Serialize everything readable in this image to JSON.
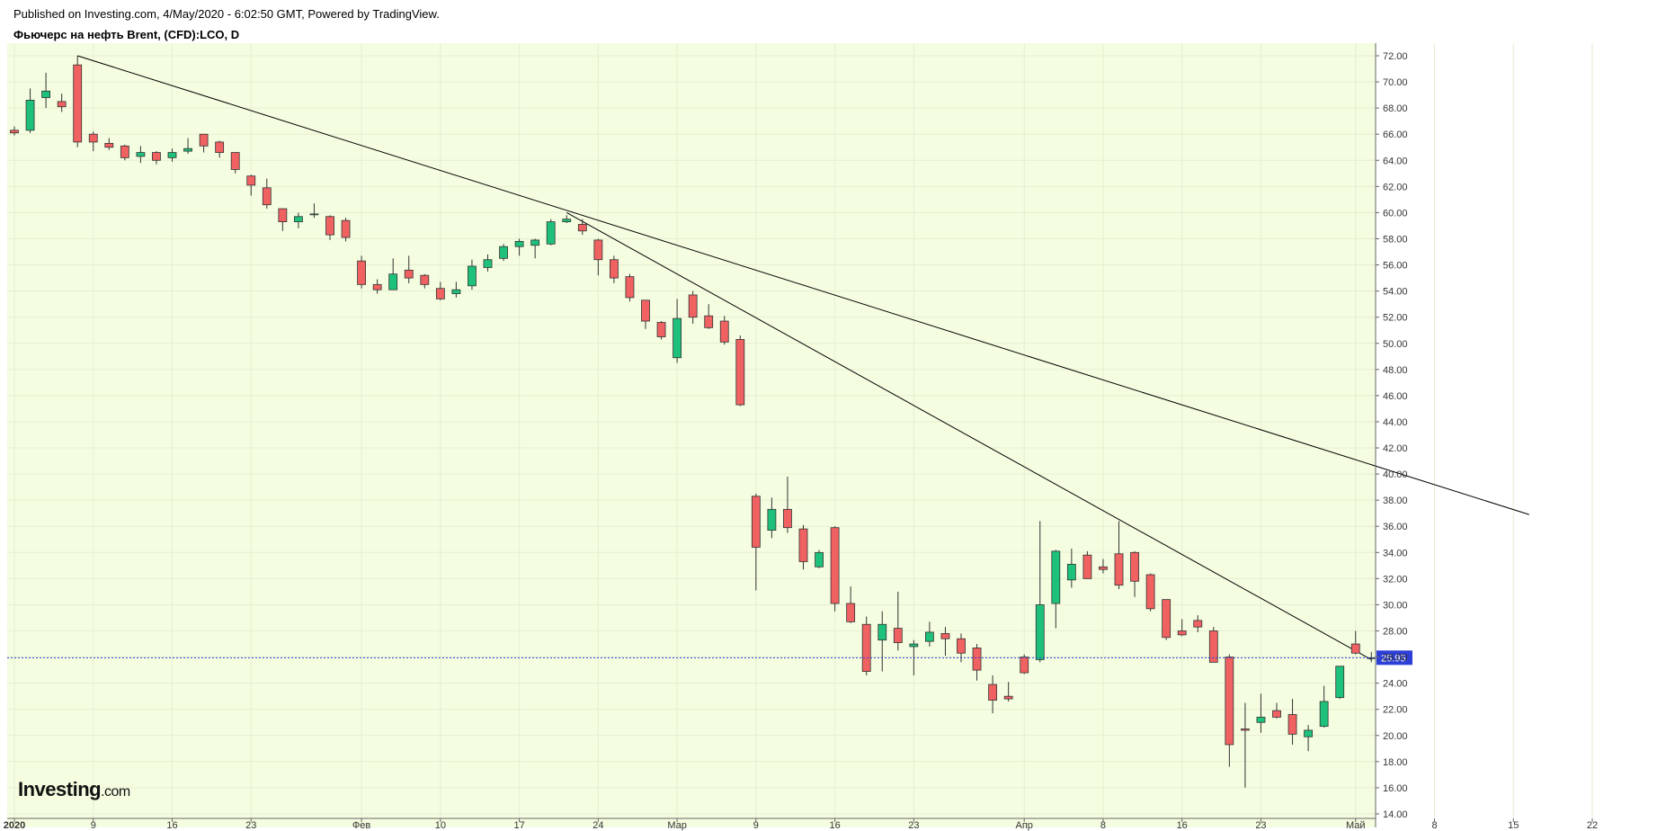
{
  "header": {
    "published": "Published on Investing.com, 4/May/2020 - 6:02:50 GMT, Powered by TradingView.",
    "symbol": "Фьючерс на нефть Brent, (CFD):LCO, D"
  },
  "logo": {
    "brand": "Investing",
    "suffix": ".com"
  },
  "colors": {
    "background": "#f4fde0",
    "up": "#1ec17a",
    "down": "#f06161",
    "wick": "#333333",
    "trend": "#000000",
    "priceLine": "#2d3fd6",
    "priceTag": "#2d3fd6"
  },
  "chart_data": {
    "type": "candlestick",
    "title": "Фьючерс на нефть Brent, (CFD):LCO, D",
    "ylim": [
      14,
      73
    ],
    "yticks": [
      "14.00",
      "16.00",
      "18.00",
      "20.00",
      "22.00",
      "24.00",
      "26.00",
      "28.00",
      "30.00",
      "32.00",
      "34.00",
      "36.00",
      "38.00",
      "40.00",
      "42.00",
      "44.00",
      "46.00",
      "48.00",
      "50.00",
      "52.00",
      "54.00",
      "56.00",
      "58.00",
      "60.00",
      "62.00",
      "64.00",
      "66.00",
      "68.00",
      "70.00",
      "72.00"
    ],
    "xticks": [
      {
        "label": "2020",
        "i": 0,
        "bold": true
      },
      {
        "label": "9",
        "i": 5
      },
      {
        "label": "16",
        "i": 10
      },
      {
        "label": "23",
        "i": 15
      },
      {
        "label": "Фев",
        "i": 22
      },
      {
        "label": "10",
        "i": 27
      },
      {
        "label": "17",
        "i": 32
      },
      {
        "label": "24",
        "i": 37
      },
      {
        "label": "Мар",
        "i": 42
      },
      {
        "label": "9",
        "i": 47
      },
      {
        "label": "16",
        "i": 52
      },
      {
        "label": "23",
        "i": 57
      },
      {
        "label": "Апр",
        "i": 64
      },
      {
        "label": "8",
        "i": 69
      },
      {
        "label": "16",
        "i": 74
      },
      {
        "label": "23",
        "i": 79
      },
      {
        "label": "Май",
        "i": 85
      },
      {
        "label": "8",
        "i": 90
      },
      {
        "label": "15",
        "i": 95
      },
      {
        "label": "22",
        "i": 100
      }
    ],
    "candles": [
      [
        66.3,
        66.6,
        65.9,
        66.1
      ],
      [
        66.3,
        69.5,
        66.1,
        68.6
      ],
      [
        68.8,
        70.7,
        68.0,
        69.3
      ],
      [
        68.5,
        69.1,
        67.7,
        68.1
      ],
      [
        71.3,
        72.0,
        65.0,
        65.4
      ],
      [
        66.0,
        66.2,
        64.7,
        65.4
      ],
      [
        65.3,
        65.7,
        64.8,
        65.0
      ],
      [
        65.1,
        65.2,
        64.0,
        64.2
      ],
      [
        64.3,
        65.1,
        63.8,
        64.6
      ],
      [
        64.6,
        64.7,
        63.7,
        64.0
      ],
      [
        64.2,
        64.9,
        63.9,
        64.6
      ],
      [
        64.7,
        65.7,
        64.5,
        64.9
      ],
      [
        66.0,
        66.0,
        64.6,
        65.1
      ],
      [
        65.4,
        65.5,
        64.2,
        64.6
      ],
      [
        64.6,
        64.6,
        63.0,
        63.3
      ],
      [
        62.8,
        62.9,
        61.3,
        62.1
      ],
      [
        61.9,
        62.6,
        60.3,
        60.6
      ],
      [
        60.3,
        60.3,
        58.6,
        59.3
      ],
      [
        59.3,
        60.0,
        58.8,
        59.7
      ],
      [
        59.9,
        60.7,
        59.6,
        59.9
      ],
      [
        59.7,
        59.8,
        57.9,
        58.3
      ],
      [
        59.4,
        59.6,
        57.8,
        58.1
      ],
      [
        56.3,
        56.7,
        54.2,
        54.5
      ],
      [
        54.5,
        54.9,
        53.8,
        54.1
      ],
      [
        54.1,
        56.5,
        54.1,
        55.3
      ],
      [
        55.6,
        56.7,
        54.6,
        55.0
      ],
      [
        55.2,
        55.3,
        54.2,
        54.5
      ],
      [
        54.2,
        54.7,
        53.3,
        53.4
      ],
      [
        53.8,
        54.7,
        53.5,
        54.1
      ],
      [
        54.4,
        56.4,
        54.1,
        55.9
      ],
      [
        55.8,
        56.8,
        55.5,
        56.4
      ],
      [
        56.5,
        57.6,
        56.3,
        57.4
      ],
      [
        57.4,
        58.0,
        56.7,
        57.8
      ],
      [
        57.5,
        58.0,
        56.5,
        57.9
      ],
      [
        57.6,
        59.5,
        57.5,
        59.3
      ],
      [
        59.3,
        59.8,
        59.2,
        59.5
      ],
      [
        59.1,
        59.5,
        58.3,
        58.6
      ],
      [
        57.9,
        58.0,
        55.2,
        56.4
      ],
      [
        56.4,
        56.7,
        54.6,
        55.0
      ],
      [
        55.1,
        55.3,
        53.2,
        53.5
      ],
      [
        53.3,
        53.3,
        51.1,
        51.7
      ],
      [
        51.6,
        51.7,
        50.3,
        50.5
      ],
      [
        48.9,
        53.4,
        48.5,
        51.9
      ],
      [
        53.7,
        54.0,
        51.5,
        52.0
      ],
      [
        52.1,
        53.0,
        51.1,
        51.2
      ],
      [
        51.7,
        52.1,
        49.9,
        50.1
      ],
      [
        50.3,
        50.6,
        45.2,
        45.3
      ],
      [
        38.3,
        38.5,
        31.1,
        34.4
      ],
      [
        35.7,
        38.2,
        35.1,
        37.3
      ],
      [
        37.3,
        39.8,
        35.5,
        35.9
      ],
      [
        35.8,
        36.1,
        32.7,
        33.3
      ],
      [
        32.9,
        34.2,
        32.8,
        34.0
      ],
      [
        35.9,
        36.0,
        29.5,
        30.1
      ],
      [
        30.1,
        31.4,
        28.6,
        28.7
      ],
      [
        28.5,
        29.1,
        24.6,
        24.9
      ],
      [
        27.3,
        29.5,
        24.9,
        28.5
      ],
      [
        28.2,
        31.0,
        26.5,
        27.1
      ],
      [
        26.8,
        27.3,
        24.6,
        27.0
      ],
      [
        27.2,
        28.7,
        26.8,
        27.9
      ],
      [
        27.8,
        28.3,
        26.1,
        27.4
      ],
      [
        27.4,
        27.8,
        25.6,
        26.3
      ],
      [
        26.7,
        27.0,
        24.2,
        25.0
      ],
      [
        23.9,
        24.6,
        21.7,
        22.7
      ],
      [
        23.0,
        24.1,
        22.6,
        22.8
      ],
      [
        26.0,
        26.2,
        24.7,
        24.8
      ],
      [
        25.8,
        36.4,
        25.6,
        30.0
      ],
      [
        30.1,
        34.2,
        28.2,
        34.1
      ],
      [
        31.9,
        34.3,
        31.3,
        33.1
      ],
      [
        33.8,
        34.1,
        32.1,
        32.0
      ],
      [
        32.9,
        33.5,
        32.4,
        32.7
      ],
      [
        33.9,
        36.4,
        31.2,
        31.5
      ],
      [
        34.0,
        34.1,
        30.6,
        31.8
      ],
      [
        32.3,
        32.4,
        29.5,
        29.7
      ],
      [
        30.4,
        30.4,
        27.3,
        27.5
      ],
      [
        28.0,
        28.9,
        27.6,
        27.7
      ],
      [
        28.8,
        29.2,
        27.9,
        28.3
      ],
      [
        28.0,
        28.3,
        25.8,
        25.6
      ],
      [
        26.0,
        26.2,
        17.6,
        19.3
      ],
      [
        20.5,
        22.5,
        16.0,
        20.4
      ],
      [
        21.0,
        23.2,
        20.2,
        21.4
      ],
      [
        21.9,
        22.5,
        21.3,
        21.4
      ],
      [
        21.6,
        22.8,
        19.3,
        20.1
      ],
      [
        19.9,
        20.8,
        18.8,
        20.4
      ],
      [
        20.7,
        23.8,
        20.6,
        22.6
      ],
      [
        22.9,
        25.3,
        22.8,
        25.3
      ],
      [
        27.0,
        28.0,
        26.2,
        26.3
      ],
      [
        25.9,
        26.4,
        25.6,
        25.95
      ]
    ],
    "trendlines": [
      {
        "from": {
          "i": 4,
          "p": 72.0
        },
        "to": {
          "i": 96,
          "p": 36.9
        }
      },
      {
        "from": {
          "i": 35,
          "p": 60.0
        },
        "to": {
          "i": 86,
          "p": 25.8
        }
      }
    ],
    "last_price": 25.95,
    "last_price_label": "25.95"
  }
}
